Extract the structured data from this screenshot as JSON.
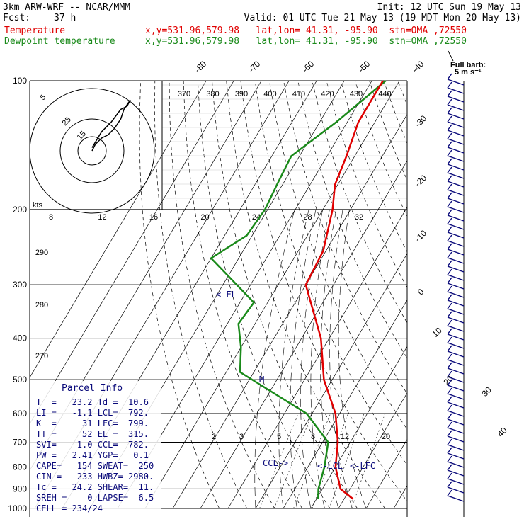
{
  "header": {
    "model": "3km ARW-WRF -- NCAR/MMM",
    "init": "Init: 12 UTC Sun 19 May 13",
    "fcst_label": "Fcst:",
    "fcst_value": "37 h",
    "valid": "Valid: 01 UTC Tue 21 May 13 (19 MDT Mon 20 May 13)",
    "temp_label": "Temperature",
    "temp_info": "x,y=531.96,579.98   lat,lon= 41.31, -95.90  stn=OMA ,72550",
    "dew_label": "Dewpoint temperature",
    "dew_info": "x,y=531.96,579.98   lat,lon= 41.31, -95.90  stn=OMA ,72550"
  },
  "colors": {
    "temperature": "#e00000",
    "dewpoint": "#1a8a1a",
    "navy": "#0a0a7a"
  },
  "barb_legend": {
    "line1": "Full barb:",
    "line2": "5 m s⁻¹"
  },
  "parcel_info": {
    "title": "Parcel Info",
    "rows": [
      "T  =   23.2 Td =  10.6",
      "LI =   -1.1 LCL=  792.",
      "K  =     31 LFC=  799.",
      "TT =     52 EL =  315.",
      "SVI=   -1.0 CCL=  782.",
      "PW =   2.41 YGP=   0.1",
      "CAPE=   154 SWEAT=  250",
      "CIN =  -233 HWBZ= 2980.",
      "Tc =   24.2 SHEAR=  11.",
      "SREH =    0 LAPSE=  6.5",
      "CELL = 234/24"
    ]
  },
  "markers": {
    "el": "<-EL",
    "ccl": "CCL->",
    "lcl": "<-LCL",
    "lfc": "<-LFC",
    "m": "M"
  },
  "hodograph": {
    "ring_labels": [
      "5",
      "15",
      "25"
    ],
    "speed_unit": "kts"
  },
  "chart_data": {
    "type": "line",
    "pressure_levels": [
      "100",
      "200",
      "300",
      "400",
      "500",
      "600",
      "700",
      "800",
      "900",
      "1000"
    ],
    "y_scale": "log-pressure",
    "isotherm_labels": [
      "-80",
      "-70",
      "-60",
      "-50",
      "-40",
      "-30",
      "-20",
      "-10",
      "0",
      "10",
      "20",
      "30",
      "40"
    ],
    "theta_labels_top": [
      "370",
      "380",
      "390",
      "400",
      "410",
      "420",
      "430",
      "440"
    ],
    "theta_labels_left": [
      "290",
      "280",
      "270"
    ],
    "hodo_x_labels": [
      "8",
      "12",
      "16",
      "20",
      "24",
      "28",
      "32"
    ],
    "mixing_ratio_labels": [
      "2",
      "3",
      "5",
      "8",
      "12",
      "20"
    ],
    "series": [
      {
        "name": "Temperature",
        "points": [
          [
            100,
            -56
          ],
          [
            125,
            -56
          ],
          [
            150,
            -53
          ],
          [
            175,
            -51
          ],
          [
            200,
            -46.5
          ],
          [
            250,
            -41
          ],
          [
            300,
            -40
          ],
          [
            400,
            -23
          ],
          [
            500,
            -13
          ],
          [
            600,
            -1.5
          ],
          [
            700,
            5.5
          ],
          [
            800,
            10
          ],
          [
            900,
            16.5
          ],
          [
            950,
            23.2
          ]
        ]
      },
      {
        "name": "Dewpoint temperature",
        "points": [
          [
            100,
            -55
          ],
          [
            125,
            -64
          ],
          [
            150,
            -73
          ],
          [
            175,
            -72
          ],
          [
            200,
            -71
          ],
          [
            230,
            -72
          ],
          [
            260,
            -80
          ],
          [
            330,
            -55
          ],
          [
            370,
            -56
          ],
          [
            420,
            -50
          ],
          [
            480,
            -45
          ],
          [
            600,
            -12
          ],
          [
            700,
            2
          ],
          [
            800,
            6
          ],
          [
            900,
            8.5
          ],
          [
            950,
            10.6
          ]
        ]
      }
    ],
    "hodograph_trace": [
      [
        0,
        0
      ],
      [
        1,
        2
      ],
      [
        3,
        4
      ],
      [
        5,
        5
      ],
      [
        7,
        7
      ],
      [
        9,
        10
      ],
      [
        10,
        13
      ],
      [
        12,
        16
      ],
      [
        11,
        14
      ],
      [
        9,
        13
      ],
      [
        6,
        9
      ],
      [
        3,
        6
      ],
      [
        0,
        1
      ]
    ]
  }
}
